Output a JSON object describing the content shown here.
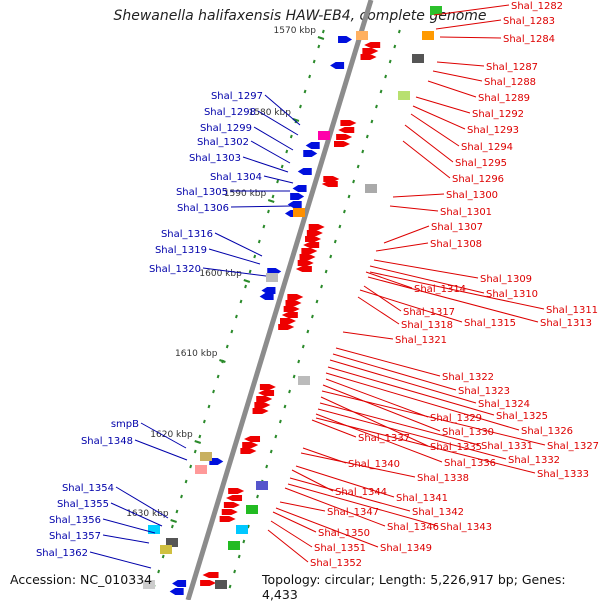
{
  "title": "Shewanella halifaxensis HAW-EB4, complete genome",
  "footer": {
    "accession": "Accession: NC_010334",
    "topology": "Topology: circular; Length: 5,226,917 bp; Genes: 4,433"
  },
  "colors": {
    "backbone": "#8c8c8c",
    "plus_strand_label": "#0000aa",
    "minus_strand_label": "#dd0000",
    "tick": "#2a8a2a",
    "tick_label": "#333333"
  },
  "kbp_ticks": [
    "1570 kbp",
    "1580 kbp",
    "1590 kbp",
    "1600 kbp",
    "1610 kbp",
    "1620 kbp",
    "1630 kbp"
  ],
  "left_labels": [
    "Shal_1297",
    "Shal_1298",
    "Shal_1299",
    "Shal_1302",
    "Shal_1303",
    "Shal_1304",
    "Shal_1305",
    "Shal_1306",
    "Shal_1316",
    "Shal_1319",
    "Shal_1320",
    "smpB",
    "Shal_1348",
    "Shal_1354",
    "Shal_1355",
    "Shal_1356",
    "Shal_1357",
    "Shal_1362"
  ],
  "right_labels": [
    "Shal_1282",
    "Shal_1283",
    "Shal_1284",
    "Shal_1287",
    "Shal_1288",
    "Shal_1289",
    "Shal_1292",
    "Shal_1293",
    "Shal_1294",
    "Shal_1295",
    "Shal_1296",
    "Shal_1300",
    "Shal_1301",
    "Shal_1307",
    "Shal_1308",
    "Shal_1309",
    "Shal_1310",
    "Shal_1314",
    "Shal_1311",
    "Shal_1313",
    "Shal_1317",
    "Shal_1315",
    "Shal_1318",
    "Shal_1321",
    "Shal_1322",
    "Shal_1323",
    "Shal_1324",
    "Shal_1325",
    "Shal_1326",
    "Shal_1329",
    "Shal_1330",
    "Shal_1327",
    "Shal_1335",
    "Shal_1331",
    "Shal_1337",
    "Shal_1332",
    "Shal_1336",
    "Shal_1333",
    "Shal_1340",
    "Shal_1338",
    "Shal_1344",
    "Shal_1341",
    "Shal_1347",
    "Shal_1342",
    "Shal_1346",
    "Shal_1343",
    "Shal_1350",
    "Shal_1349",
    "Shal_1351",
    "Shal_1352"
  ]
}
